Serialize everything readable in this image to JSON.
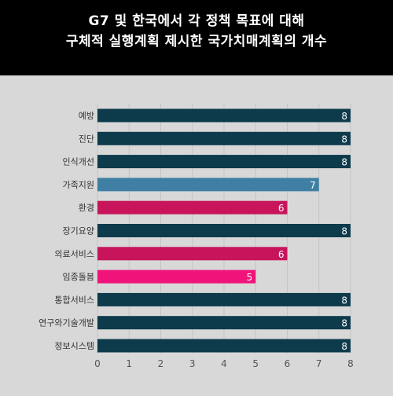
{
  "header": {
    "title_line1": "G7 및 한국에서 각 정책 목표에 대해",
    "title_line2": "구체적 실행계획 제시한 국가치매계획의 개수"
  },
  "chart_data": {
    "type": "bar",
    "orientation": "horizontal",
    "categories": [
      "예방",
      "진단",
      "인식개선",
      "가족지원",
      "환경",
      "장기요양",
      "의료서비스",
      "임종돌봄",
      "통합서비스",
      "연구와기술개발",
      "정보시스템"
    ],
    "values": [
      8,
      8,
      8,
      7,
      6,
      8,
      6,
      5,
      8,
      8,
      8
    ],
    "bar_colors": [
      "#0d3b4c",
      "#0d3b4c",
      "#0d3b4c",
      "#3e7fa3",
      "#c8145a",
      "#0d3b4c",
      "#c8145a",
      "#f0147a",
      "#0d3b4c",
      "#0d3b4c",
      "#0d3b4c"
    ],
    "xticks": [
      "0",
      "1",
      "2",
      "3",
      "4",
      "5",
      "6",
      "7",
      "8"
    ],
    "xlim": [
      0,
      8
    ],
    "grid": true,
    "data_labels": true,
    "title": "G7 및 한국에서 각 정책 목표에 대해 구체적 실행계획 제시한 국가치매계획의 개수"
  },
  "colors": {
    "background": "#d8d8d8",
    "header": "#000000",
    "gridline": "#c4c4c4",
    "label_text": "#333333",
    "tick_text": "#555555",
    "data_label_text": "#ffffff"
  }
}
